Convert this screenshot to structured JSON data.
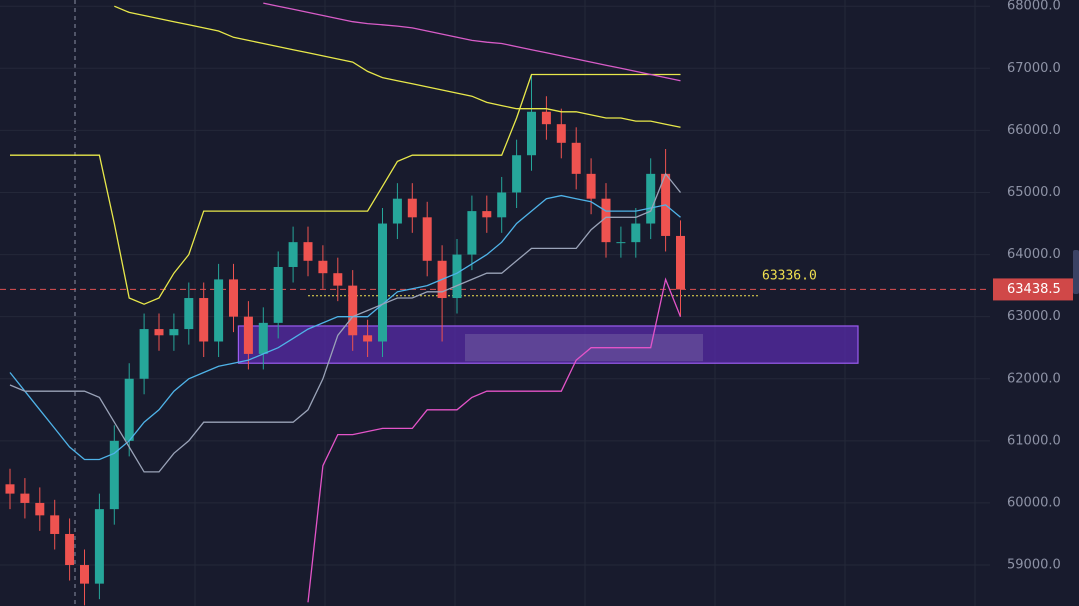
{
  "chart_data": {
    "type": "candlestick",
    "categories": [
      null,
      null,
      null,
      null,
      null,
      null,
      null,
      null,
      null,
      null,
      null,
      null,
      null,
      null,
      null,
      null,
      null,
      null,
      null,
      null,
      null,
      null,
      null,
      null,
      null,
      null,
      null,
      null,
      null,
      null,
      null,
      null,
      null,
      null,
      null,
      null,
      null,
      null,
      null,
      null,
      null,
      null,
      null,
      null,
      null,
      null
    ],
    "open": [
      60300,
      60150,
      60000,
      59800,
      59500,
      59000,
      58700,
      59900,
      61000,
      62000,
      62800,
      62700,
      62800,
      63300,
      62600,
      63600,
      63000,
      62400,
      62900,
      63800,
      64200,
      63900,
      63700,
      63500,
      62700,
      62600,
      64500,
      64900,
      64600,
      63900,
      63300,
      64000,
      64700,
      64600,
      65000,
      65600,
      66300,
      66100,
      65800,
      65300,
      64900,
      64200,
      64200,
      64500,
      65300,
      64300
    ],
    "high": [
      60550,
      60400,
      60250,
      60050,
      59750,
      59250,
      60150,
      61250,
      62250,
      63050,
      63050,
      63050,
      63550,
      63550,
      63850,
      63850,
      63250,
      63150,
      64050,
      64450,
      64450,
      64150,
      63950,
      63750,
      62950,
      64750,
      65150,
      65150,
      64850,
      64150,
      64250,
      64950,
      64950,
      65250,
      65850,
      66900,
      66550,
      66350,
      66050,
      65550,
      65150,
      64450,
      64750,
      65550,
      65700,
      64550
    ],
    "low": [
      59900,
      59750,
      59550,
      59250,
      58750,
      58350,
      58450,
      59650,
      60750,
      61750,
      62450,
      62450,
      62550,
      62350,
      62350,
      62750,
      62150,
      62150,
      62650,
      63550,
      63650,
      63450,
      63250,
      62450,
      62350,
      62350,
      64250,
      64350,
      63650,
      62600,
      63050,
      63750,
      64350,
      64350,
      64750,
      65350,
      65850,
      65550,
      65050,
      64650,
      63950,
      63950,
      63950,
      64250,
      64050,
      63000
    ],
    "close": [
      60150,
      60000,
      59800,
      59500,
      59000,
      58700,
      59900,
      61000,
      62000,
      62800,
      62700,
      62800,
      63300,
      62600,
      63600,
      63000,
      62400,
      62900,
      63800,
      64200,
      63900,
      63700,
      63500,
      62700,
      62600,
      64500,
      64900,
      64600,
      63900,
      63300,
      64000,
      64700,
      64600,
      65000,
      65600,
      66300,
      66100,
      65800,
      65300,
      64900,
      64200,
      64200,
      64500,
      65300,
      64300,
      63438.5
    ],
    "up_color": "#26a69a",
    "down_color": "#ef5350",
    "series": [
      {
        "color": "#e8e84a",
        "values": [
          65600,
          65600,
          65600,
          65600,
          65600,
          65600,
          65600,
          64500,
          63300,
          63200,
          63300,
          63700,
          64000,
          64700,
          64700,
          64700,
          64700,
          64700,
          64700,
          64700,
          64700,
          64700,
          64700,
          64700,
          64700,
          65100,
          65500,
          65600,
          65600,
          65600,
          65600,
          65600,
          65600,
          65600,
          66200,
          66900,
          66900,
          66900,
          66900,
          66900,
          66900,
          66900,
          66900,
          66900,
          66900,
          66900
        ]
      },
      {
        "color": "#e354c8",
        "values": [
          null,
          null,
          null,
          null,
          null,
          null,
          null,
          null,
          null,
          null,
          null,
          null,
          null,
          null,
          null,
          null,
          null,
          null,
          null,
          null,
          58400,
          60600,
          61100,
          61100,
          61150,
          61200,
          61200,
          61200,
          61500,
          61500,
          61500,
          61700,
          61800,
          61800,
          61800,
          61800,
          61800,
          61800,
          62300,
          62500,
          62500,
          62500,
          62500,
          62500,
          63600,
          63000
        ]
      },
      {
        "color": "#4fb3e8",
        "values": [
          62100,
          61800,
          61500,
          61200,
          60900,
          60700,
          60700,
          60800,
          61000,
          61300,
          61500,
          61800,
          62000,
          62100,
          62200,
          62250,
          62300,
          62400,
          62500,
          62650,
          62800,
          62900,
          63000,
          63000,
          63000,
          63200,
          63400,
          63450,
          63500,
          63600,
          63700,
          63850,
          64000,
          64200,
          64500,
          64700,
          64900,
          64950,
          64900,
          64850,
          64700,
          64700,
          64700,
          64750,
          64800,
          64600
        ]
      },
      {
        "color": "#9aa3b8",
        "values": [
          61900,
          61800,
          61800,
          61800,
          61800,
          61800,
          61700,
          61300,
          60900,
          60500,
          60500,
          60800,
          61000,
          61300,
          61300,
          61300,
          61300,
          61300,
          61300,
          61300,
          61500,
          62000,
          62700,
          63000,
          63100,
          63200,
          63300,
          63300,
          63400,
          63400,
          63500,
          63600,
          63700,
          63700,
          63900,
          64100,
          64100,
          64100,
          64100,
          64400,
          64600,
          64600,
          64600,
          64700,
          65300,
          65000
        ]
      },
      {
        "color": "#e8e84a",
        "values": [
          null,
          null,
          null,
          null,
          null,
          null,
          null,
          68000,
          67900,
          67850,
          67800,
          67750,
          67700,
          67650,
          67600,
          67500,
          67450,
          67400,
          67350,
          67300,
          67250,
          67200,
          67150,
          67100,
          66950,
          66850,
          66800,
          66750,
          66700,
          66650,
          66600,
          66550,
          66450,
          66400,
          66350,
          66350,
          66350,
          66300,
          66300,
          66250,
          66200,
          66200,
          66150,
          66150,
          66100,
          66050
        ]
      },
      {
        "color": "#d85cc8",
        "values": [
          null,
          null,
          null,
          null,
          null,
          null,
          null,
          null,
          null,
          null,
          null,
          null,
          null,
          null,
          null,
          null,
          null,
          68050,
          68000,
          67950,
          67900,
          67850,
          67800,
          67750,
          67720,
          67700,
          67680,
          67650,
          67600,
          67550,
          67500,
          67450,
          67420,
          67400,
          67350,
          67300,
          67250,
          67200,
          67150,
          67100,
          67050,
          67000,
          66950,
          66900,
          66850,
          66800
        ]
      }
    ],
    "zone": {
      "low": 62250,
      "high": 62850,
      "color": "#5b2bb0"
    },
    "annotation": {
      "value": 63336,
      "label": "63336.0",
      "color": "#f0e050"
    },
    "last_price": 63438.5,
    "ylim": [
      58340,
      68100
    ],
    "yticks": [
      {
        "value": 59000,
        "label": "59000.0"
      },
      {
        "value": 60000,
        "label": "60000.0"
      },
      {
        "value": 61000,
        "label": "61000.0"
      },
      {
        "value": 62000,
        "label": "62000.0"
      },
      {
        "value": 63000,
        "label": "63000.0"
      },
      {
        "value": 64000,
        "label": "64000.0"
      },
      {
        "value": 65000,
        "label": "65000.0"
      },
      {
        "value": 66000,
        "label": "66000.0"
      },
      {
        "value": 67000,
        "label": "67000.0"
      },
      {
        "value": 68000,
        "label": "68000.0"
      }
    ],
    "grid": true
  }
}
